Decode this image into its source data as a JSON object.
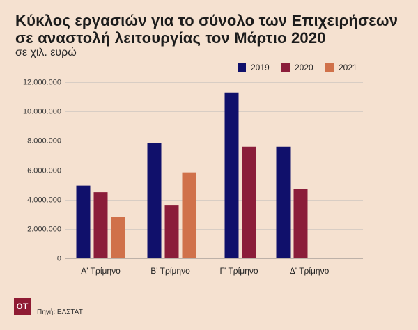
{
  "colors": {
    "background": "#f5e1d0",
    "logo": "#8f1b33"
  },
  "footer": {
    "logo_text": "OT",
    "source": "Πηγή: ΕΛΣΤΑΤ"
  },
  "chart_data": {
    "type": "bar",
    "title": "Κύκλος εργασιών για το σύνολο των Επιχειρήσεων\nσε αναστολή λειτουργίας τον Μάρτιο 2020",
    "subtitle": "σε χιλ. ευρώ",
    "categories": [
      "Α' Τρίμηνο",
      "Β' Τρίμηνο",
      "Γ' Τρίμηνο",
      "Δ' Τρίμηνο"
    ],
    "series": [
      {
        "name": "2019",
        "color": "#10106b",
        "values": [
          4950000,
          7850000,
          11300000,
          7600000
        ]
      },
      {
        "name": "2020",
        "color": "#8b1d3a",
        "values": [
          4500000,
          3600000,
          7600000,
          4700000
        ]
      },
      {
        "name": "2021",
        "color": "#d0714a",
        "values": [
          2800000,
          5850000,
          null,
          null
        ]
      }
    ],
    "ylim": [
      0,
      12000000
    ],
    "y_ticks": [
      0,
      2000000,
      4000000,
      6000000,
      8000000,
      10000000,
      12000000
    ],
    "y_tick_labels": [
      "0",
      "2.000.000",
      "4.000.000",
      "6.000.000",
      "8.000.000",
      "10.000.000",
      "12.000.000"
    ],
    "grid": true,
    "legend": "top-right"
  }
}
